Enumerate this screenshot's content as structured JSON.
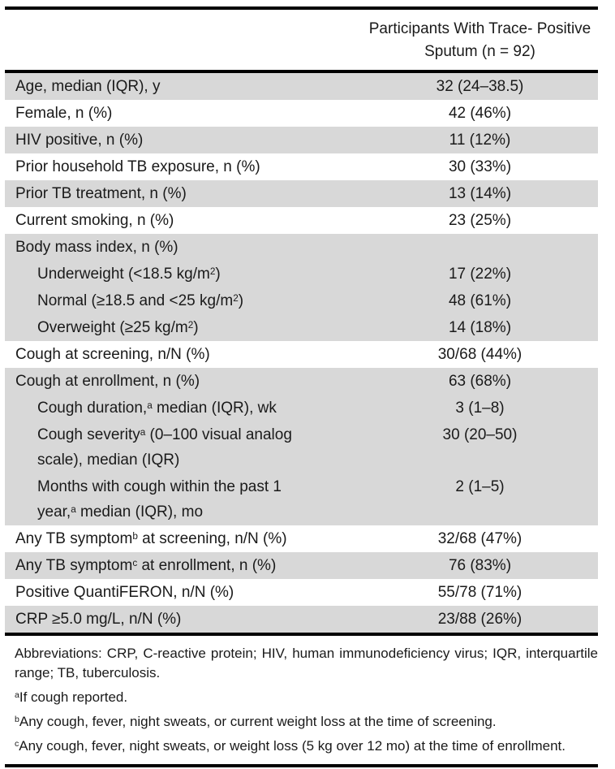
{
  "table": {
    "header": {
      "value_col_line1": "Participants With Trace- Positive",
      "value_col_line2": "Sputum (n = 92)"
    },
    "rows": [
      {
        "label": "Age, median (IQR), y",
        "value": "32 (24–38.5)"
      },
      {
        "label": "Female, n (%)",
        "value": "42 (46%)"
      },
      {
        "label": "HIV positive, n (%)",
        "value": "11 (12%)"
      },
      {
        "label": "Prior household TB exposure, n (%)",
        "value": "30 (33%)"
      },
      {
        "label": "Prior TB treatment, n (%)",
        "value": "13 (14%)"
      },
      {
        "label": "Current smoking, n (%)",
        "value": "23 (25%)"
      },
      {
        "label": "Body mass index, n (%)",
        "value": ""
      },
      {
        "label": "Underweight (<18.5 kg/m^{2})",
        "value": "17 (22%)"
      },
      {
        "label": "Normal (≥18.5 and <25 kg/m^{2})",
        "value": "48 (61%)"
      },
      {
        "label": "Overweight (≥25 kg/m^{2})",
        "value": "14 (18%)"
      },
      {
        "label": "Cough at screening, n/N (%)",
        "value": "30/68 (44%)"
      },
      {
        "label": "Cough at enrollment, n (%)",
        "value": "63 (68%)"
      },
      {
        "label": "Cough duration,^{a} median (IQR), wk",
        "value": "3 (1–8)"
      },
      {
        "label": "Cough severity^{a} (0–100 visual analog scale), median (IQR)",
        "value": "30 (20–50)"
      },
      {
        "label": "Months with cough within the past 1 year,^{a} median (IQR), mo",
        "value": "2 (1–5)"
      },
      {
        "label": "Any TB symptom^{b} at screening, n/N (%)",
        "value": "32/68 (47%)"
      },
      {
        "label": "Any TB symptom^{c} at enrollment, n (%)",
        "value": "76 (83%)"
      },
      {
        "label": "Positive QuantiFERON, n/N (%)",
        "value": "55/78 (71%)"
      },
      {
        "label": "CRP ≥5.0 mg/L, n/N (%)",
        "value": "23/88 (26%)"
      }
    ],
    "footnotes": {
      "abbreviations": "Abbreviations: CRP, C-reactive protein; HIV, human immunodeficiency virus; IQR, interquartile range; TB, tuberculosis.",
      "a": "^{a}If cough reported.",
      "b": "^{b}Any cough, fever, night sweats, or current weight loss at the time of screening.",
      "c": "^{c}Any cough, fever, night sweats, or weight loss (5 kg over 12 mo) at the time of enrollment."
    },
    "colors": {
      "row_shade": "#d8d8d8",
      "rule": "#000000",
      "text": "#1a1a1a"
    }
  }
}
